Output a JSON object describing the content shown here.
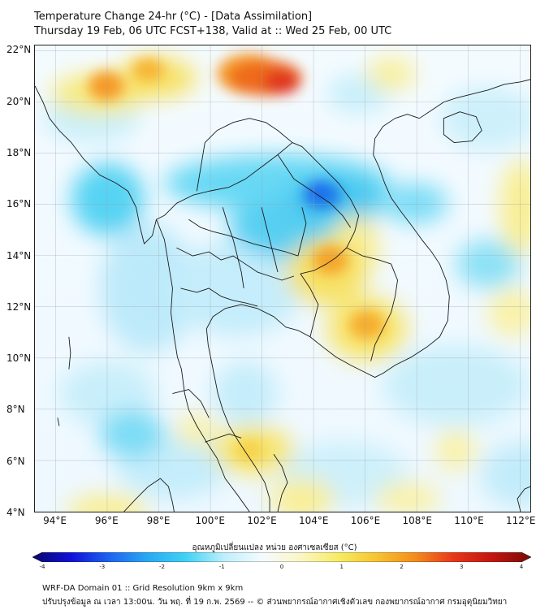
{
  "header": {
    "title_line1": "Temperature Change 24-hr (°C) - [Data Assimilation]",
    "title_line2": "Thursday 19 Feb, 06 UTC FCST+138, Valid at :: Wed 25 Feb, 00 UTC"
  },
  "map": {
    "lat_labels": [
      "22°N",
      "20°N",
      "18°N",
      "16°N",
      "14°N",
      "12°N",
      "10°N",
      "8°N",
      "6°N",
      "4°N"
    ],
    "lon_labels": [
      "94°E",
      "96°E",
      "98°E",
      "100°E",
      "102°E",
      "104°E",
      "106°E",
      "108°E",
      "110°E",
      "112°E"
    ],
    "lat_range": [
      4,
      22.2
    ],
    "lon_range": [
      93.2,
      112.4
    ],
    "gridlines": true
  },
  "colorbar": {
    "title": "อุณหภูมิเปลี่ยนแปลง หน่วย องศาเซลเซียส (°C)",
    "ticks": [
      "-4",
      "-3",
      "-2",
      "-1",
      "0",
      "1",
      "2",
      "3",
      "4"
    ],
    "range": [
      -4,
      4
    ],
    "colors": [
      "#08086b",
      "#1010d8",
      "#1e63f0",
      "#27a9f2",
      "#3fd2f5",
      "#bfeffc",
      "#f4fbff",
      "#fbf6c4",
      "#f6eb62",
      "#f7c22f",
      "#f48a1c",
      "#e6351a",
      "#c2150f",
      "#7a0a05"
    ]
  },
  "footer": {
    "line1": "WRF-DA Domain 01 :: Grid Resolution 9km x 9km",
    "line2": "ปรับปรุงข้อมูล ณ เวลา 13:00น. วัน พฤ. ที่ 19 ก.พ. 2569 -- © ส่วนพยากรณ์อากาศเชิงตัวเลข กองพยากรณ์อากาศ กรมอุตุนิยมวิทยา"
  }
}
